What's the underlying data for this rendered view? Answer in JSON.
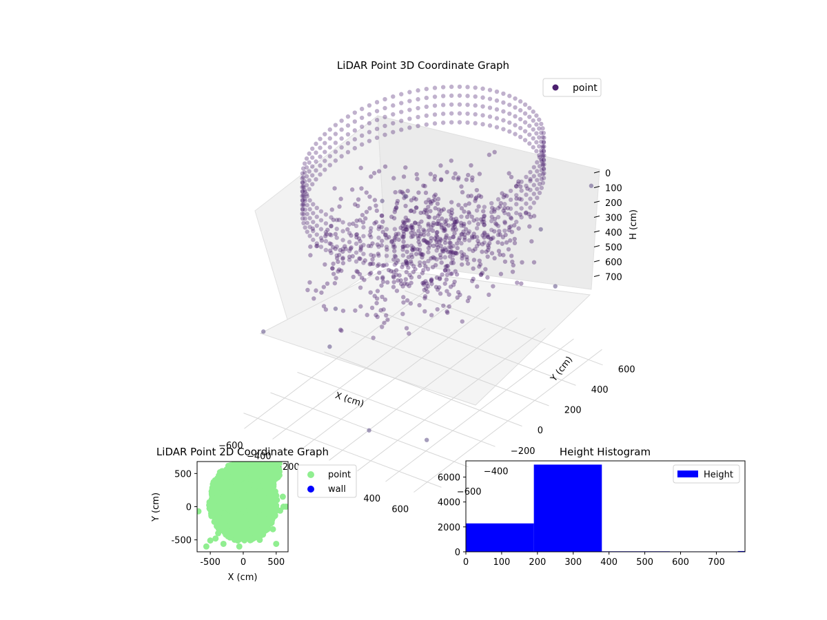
{
  "figure": {
    "background": "#ffffff"
  },
  "chart_data": [
    {
      "type": "scatter3d",
      "title": "LiDAR Point 3D Coordinate Graph",
      "xlabel": "X (cm)",
      "ylabel": "Y (cm)",
      "zlabel": "H (cm)",
      "xticks": [
        "−600",
        "−400",
        "−200",
        "0",
        "200",
        "400",
        "600"
      ],
      "yticks": [
        "−600",
        "−400",
        "−200",
        "0",
        "200",
        "400",
        "600"
      ],
      "zticks": [
        "0",
        "100",
        "200",
        "300",
        "400",
        "500",
        "600",
        "700"
      ],
      "xlim": [
        -700,
        700
      ],
      "ylim": [
        -700,
        700
      ],
      "zlim": [
        0,
        780
      ],
      "z_inverted": true,
      "legend": {
        "label": "point",
        "position": "top-right"
      },
      "point_color": "#4b1f6f",
      "panes_color": "#f2f2f2",
      "grid": true,
      "description_of_points": {
        "ring_radius": 620,
        "ring_height_range": [
          0,
          380
        ],
        "outliers": [
          [
            -620,
            520,
            420
          ],
          [
            -560,
            -600,
            480
          ],
          [
            300,
            560,
            380
          ],
          [
            650,
            300,
            420
          ],
          [
            -480,
            200,
            300
          ],
          [
            -300,
            -380,
            560
          ],
          [
            520,
            -520,
            680
          ],
          [
            150,
            -560,
            700
          ],
          [
            -620,
            0,
            620
          ],
          [
            600,
            620,
            200
          ]
        ]
      }
    },
    {
      "type": "scatter",
      "title": "LiDAR Point 2D Coordinate Graph",
      "xlabel": "X (cm)",
      "ylabel": "Y (cm)",
      "xticks": [
        -500,
        0,
        500
      ],
      "yticks": [
        -500,
        0,
        500
      ],
      "xlim": [
        -700,
        680
      ],
      "ylim": [
        -680,
        680
      ],
      "legend": [
        {
          "label": "point",
          "color": "#90ee90"
        },
        {
          "label": "wall",
          "color": "#0000ff"
        }
      ],
      "legend_position": "outside-right",
      "series": [
        {
          "name": "point",
          "color": "#90ee90",
          "sample_points": [
            [
              -680,
              -70
            ],
            [
              -560,
              -600
            ],
            [
              -500,
              -510
            ],
            [
              -420,
              -480
            ],
            [
              -380,
              -400
            ],
            [
              -300,
              -560
            ],
            [
              -130,
              -420
            ],
            [
              -60,
              -600
            ],
            [
              50,
              -470
            ],
            [
              150,
              -480
            ],
            [
              250,
              -500
            ],
            [
              300,
              -420
            ],
            [
              450,
              -340
            ],
            [
              500,
              -560
            ],
            [
              560,
              -60
            ],
            [
              610,
              0
            ],
            [
              650,
              0
            ],
            [
              600,
              150
            ]
          ]
        },
        {
          "name": "wall",
          "color": "#0000ff",
          "sample_points": []
        }
      ]
    },
    {
      "type": "bar",
      "title": "Height Histogram",
      "xlabel": "",
      "ylabel": "",
      "xlim": [
        0,
        780
      ],
      "ylim": [
        0,
        7300
      ],
      "xticks": [
        0,
        100,
        200,
        300,
        400,
        500,
        600,
        700
      ],
      "yticks": [
        0,
        2000,
        4000,
        6000
      ],
      "color": "#0000ff",
      "legend": {
        "label": "Height",
        "position": "top-right"
      },
      "bins": [
        {
          "x0": 0,
          "x1": 190,
          "value": 2280
        },
        {
          "x0": 190,
          "x1": 380,
          "value": 7000
        },
        {
          "x0": 380,
          "x1": 570,
          "value": 40
        },
        {
          "x0": 570,
          "x1": 760,
          "value": 30
        },
        {
          "x0": 760,
          "x1": 950,
          "value": 60
        }
      ]
    }
  ]
}
